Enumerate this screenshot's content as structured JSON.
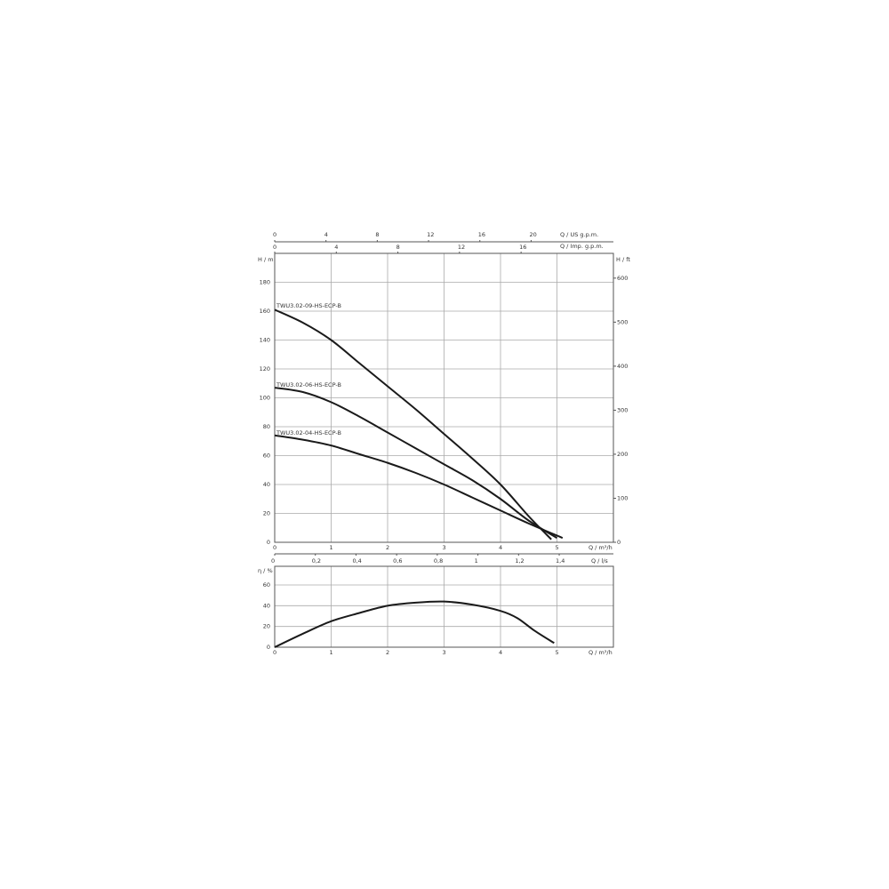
{
  "chart_data": [
    {
      "type": "line",
      "xlabel": "Q / m³/h",
      "ylabel": "H / m",
      "ylabel_right": "H / ft",
      "xlabel_top_1": "Q / US g.p.m.",
      "xlabel_top_2": "Q / Imp. g.p.m.",
      "xlabel_bottom_2": "Q / l/s",
      "xlim": [
        0,
        6
      ],
      "ylim": [
        0,
        200
      ],
      "grid": true,
      "x_ticks": [
        0,
        1,
        2,
        3,
        4,
        5
      ],
      "y_ticks": [
        0,
        20,
        40,
        60,
        80,
        100,
        120,
        140,
        160,
        180
      ],
      "y_ticks_right": [
        0,
        100,
        200,
        300,
        400,
        500,
        600
      ],
      "top_ticks_us_gpm": [
        0,
        4,
        8,
        12,
        16,
        20
      ],
      "top_ticks_imp_gpm": [
        0,
        4,
        8,
        12,
        16
      ],
      "bottom_ticks_ls": [
        "0",
        "0,2",
        "0,4",
        "0,6",
        "0,8",
        "1",
        "1,2",
        "1,4"
      ],
      "series": [
        {
          "name": "TWU3.02-09-HS-ECP-B",
          "x": [
            0,
            0.5,
            1,
            1.5,
            2,
            2.5,
            3,
            3.5,
            4,
            4.5,
            4.9
          ],
          "y": [
            161,
            152,
            140,
            124,
            108,
            92,
            75,
            58,
            40,
            18,
            2
          ]
        },
        {
          "name": "TWU3.02-06-HS-ECP-B",
          "x": [
            0,
            0.5,
            1,
            1.5,
            2,
            2.5,
            3,
            3.5,
            4,
            4.5,
            5
          ],
          "y": [
            107,
            104,
            97,
            87,
            76,
            65,
            54,
            43,
            30,
            15,
            3
          ]
        },
        {
          "name": "TWU3.02-04-HS-ECP-B",
          "x": [
            0,
            0.5,
            1,
            1.5,
            2,
            2.5,
            3,
            3.5,
            4,
            4.5,
            5.1
          ],
          "y": [
            74,
            71,
            67,
            61,
            55,
            48,
            40,
            31,
            22,
            13,
            3
          ]
        }
      ]
    },
    {
      "type": "line",
      "xlabel": "Q / m³/h",
      "ylabel": "η / %",
      "xlim": [
        0,
        6
      ],
      "ylim": [
        0,
        78
      ],
      "grid": true,
      "x_ticks": [
        0,
        1,
        2,
        3,
        4,
        5
      ],
      "y_ticks": [
        0,
        20,
        40,
        60
      ],
      "series": [
        {
          "x": [
            0,
            0.5,
            1,
            1.5,
            2,
            2.5,
            3,
            3.5,
            4,
            4.3,
            4.6,
            4.95
          ],
          "y": [
            0,
            13,
            25,
            33,
            40,
            43,
            44,
            41,
            35,
            28,
            16,
            4
          ]
        }
      ]
    }
  ]
}
